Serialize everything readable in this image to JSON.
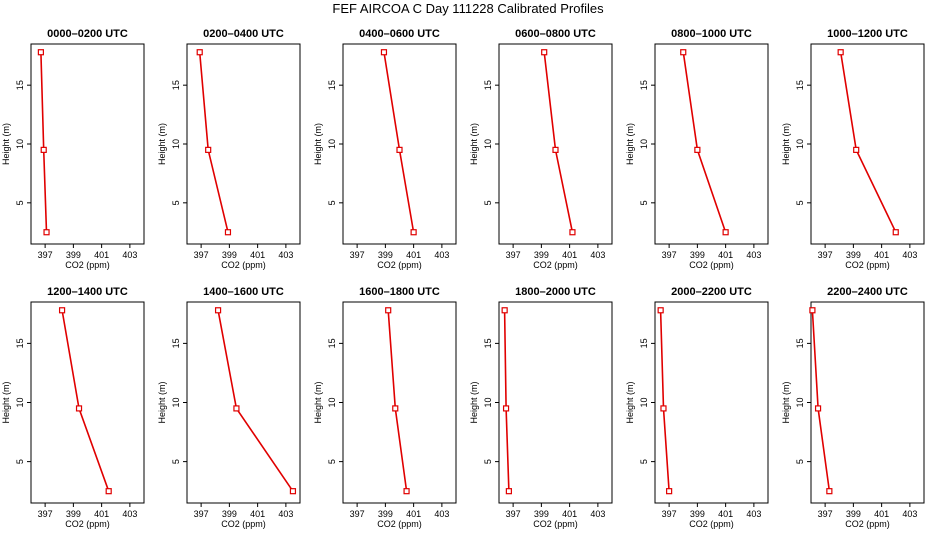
{
  "title": "FEF  AIRCOA C  Day 111228  Calibrated Profiles",
  "colors": {
    "series": "#e00000",
    "axis": "#000000"
  },
  "chart_data": [
    {
      "type": "line",
      "title": "0000–0200 UTC",
      "xlabel": "CO2 (ppm)",
      "ylabel": "Height (m)",
      "xlim": [
        396,
        404
      ],
      "ylim": [
        1.5,
        18.5
      ],
      "xticks": [
        "397",
        "399",
        "401",
        "403"
      ],
      "yticks": [
        "5",
        "10",
        "15"
      ],
      "x": [
        396.7,
        396.9,
        397.1
      ],
      "y": [
        17.8,
        9.5,
        2.5
      ]
    },
    {
      "type": "line",
      "title": "0200–0400 UTC",
      "xlabel": "CO2 (ppm)",
      "ylabel": "Height (m)",
      "xlim": [
        396,
        404
      ],
      "ylim": [
        1.5,
        18.5
      ],
      "xticks": [
        "397",
        "399",
        "401",
        "403"
      ],
      "yticks": [
        "5",
        "10",
        "15"
      ],
      "x": [
        396.9,
        397.5,
        398.9
      ],
      "y": [
        17.8,
        9.5,
        2.5
      ]
    },
    {
      "type": "line",
      "title": "0400–0600 UTC",
      "xlabel": "CO2 (ppm)",
      "ylabel": "Height (m)",
      "xlim": [
        396,
        404
      ],
      "ylim": [
        1.5,
        18.5
      ],
      "xticks": [
        "397",
        "399",
        "401",
        "403"
      ],
      "yticks": [
        "5",
        "10",
        "15"
      ],
      "x": [
        398.9,
        400.0,
        401.0
      ],
      "y": [
        17.8,
        9.5,
        2.5
      ]
    },
    {
      "type": "line",
      "title": "0600–0800 UTC",
      "xlabel": "CO2 (ppm)",
      "ylabel": "Height (m)",
      "xlim": [
        396,
        404
      ],
      "ylim": [
        1.5,
        18.5
      ],
      "xticks": [
        "397",
        "399",
        "401",
        "403"
      ],
      "yticks": [
        "5",
        "10",
        "15"
      ],
      "x": [
        399.2,
        400.0,
        401.2
      ],
      "y": [
        17.8,
        9.5,
        2.5
      ]
    },
    {
      "type": "line",
      "title": "0800–1000 UTC",
      "xlabel": "CO2 (ppm)",
      "ylabel": "Height (m)",
      "xlim": [
        396,
        404
      ],
      "ylim": [
        1.5,
        18.5
      ],
      "xticks": [
        "397",
        "399",
        "401",
        "403"
      ],
      "yticks": [
        "5",
        "10",
        "15"
      ],
      "x": [
        398.0,
        399.0,
        401.0
      ],
      "y": [
        17.8,
        9.5,
        2.5
      ]
    },
    {
      "type": "line",
      "title": "1000–1200 UTC",
      "xlabel": "CO2 (ppm)",
      "ylabel": "Height (m)",
      "xlim": [
        396,
        404
      ],
      "ylim": [
        1.5,
        18.5
      ],
      "xticks": [
        "397",
        "399",
        "401",
        "403"
      ],
      "yticks": [
        "5",
        "10",
        "15"
      ],
      "x": [
        398.1,
        399.2,
        402.0
      ],
      "y": [
        17.8,
        9.5,
        2.5
      ]
    },
    {
      "type": "line",
      "title": "1200–1400 UTC",
      "xlabel": "CO2 (ppm)",
      "ylabel": "Height (m)",
      "xlim": [
        396,
        404
      ],
      "ylim": [
        1.5,
        18.5
      ],
      "xticks": [
        "397",
        "399",
        "401",
        "403"
      ],
      "yticks": [
        "5",
        "10",
        "15"
      ],
      "x": [
        398.2,
        399.4,
        401.5
      ],
      "y": [
        17.8,
        9.5,
        2.5
      ]
    },
    {
      "type": "line",
      "title": "1400–1600 UTC",
      "xlabel": "CO2 (ppm)",
      "ylabel": "Height (m)",
      "xlim": [
        396,
        404
      ],
      "ylim": [
        1.5,
        18.5
      ],
      "xticks": [
        "397",
        "399",
        "401",
        "403"
      ],
      "yticks": [
        "5",
        "10",
        "15"
      ],
      "x": [
        398.2,
        399.5,
        403.5
      ],
      "y": [
        17.8,
        9.5,
        2.5
      ]
    },
    {
      "type": "line",
      "title": "1600–1800 UTC",
      "xlabel": "CO2 (ppm)",
      "ylabel": "Height (m)",
      "xlim": [
        396,
        404
      ],
      "ylim": [
        1.5,
        18.5
      ],
      "xticks": [
        "397",
        "399",
        "401",
        "403"
      ],
      "yticks": [
        "5",
        "10",
        "15"
      ],
      "x": [
        399.2,
        399.7,
        400.5
      ],
      "y": [
        17.8,
        9.5,
        2.5
      ]
    },
    {
      "type": "line",
      "title": "1800–2000 UTC",
      "xlabel": "CO2 (ppm)",
      "ylabel": "Height (m)",
      "xlim": [
        396,
        404
      ],
      "ylim": [
        1.5,
        18.5
      ],
      "xticks": [
        "397",
        "399",
        "401",
        "403"
      ],
      "yticks": [
        "5",
        "10",
        "15"
      ],
      "x": [
        396.4,
        396.5,
        396.7
      ],
      "y": [
        17.8,
        9.5,
        2.5
      ]
    },
    {
      "type": "line",
      "title": "2000–2200 UTC",
      "xlabel": "CO2 (ppm)",
      "ylabel": "Height (m)",
      "xlim": [
        396,
        404
      ],
      "ylim": [
        1.5,
        18.5
      ],
      "xticks": [
        "397",
        "399",
        "401",
        "403"
      ],
      "yticks": [
        "5",
        "10",
        "15"
      ],
      "x": [
        396.4,
        396.6,
        397.0
      ],
      "y": [
        17.8,
        9.5,
        2.5
      ]
    },
    {
      "type": "line",
      "title": "2200–2400 UTC",
      "xlabel": "CO2 (ppm)",
      "ylabel": "Height (m)",
      "xlim": [
        396,
        404
      ],
      "ylim": [
        1.5,
        18.5
      ],
      "xticks": [
        "397",
        "399",
        "401",
        "403"
      ],
      "yticks": [
        "5",
        "10",
        "15"
      ],
      "x": [
        396.1,
        396.5,
        397.3
      ],
      "y": [
        17.8,
        9.5,
        2.5
      ]
    }
  ]
}
